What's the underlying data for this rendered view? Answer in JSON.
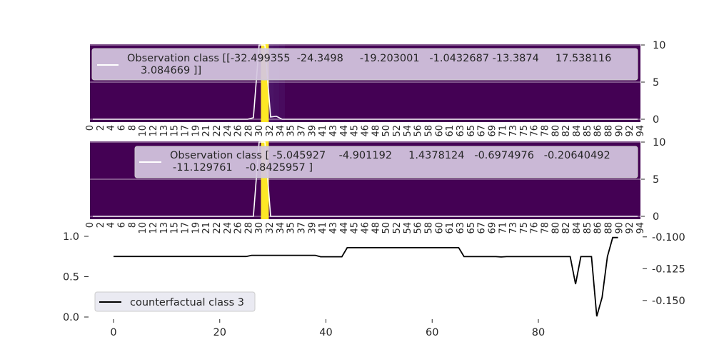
{
  "chart_data": [
    {
      "type": "heatmap",
      "panel": "top",
      "legend": {
        "line1": "Observation class [[-32.499355  -24.3498     -19.203001   -1.0432687 -13.3874     17.538116",
        "line2": "3.084669 ]]"
      },
      "y_right_ticks": [
        "10",
        "5",
        "0"
      ],
      "ylim": [
        0,
        10
      ],
      "colormap": "viridis",
      "highlight_column": 30,
      "faint_columns": [
        31,
        32,
        33
      ],
      "line_series": {
        "x": [
          0,
          27,
          28,
          29,
          30,
          31,
          32,
          33,
          40,
          50,
          60,
          70,
          80,
          90,
          95
        ],
        "y": [
          0,
          0,
          0.2,
          10,
          10,
          0.3,
          0.4,
          0,
          0,
          0,
          0,
          0,
          0,
          0,
          0
        ]
      }
    },
    {
      "type": "heatmap",
      "panel": "middle",
      "legend": {
        "line1": "Observation class [ -5.045927    -4.901192     1.4378124   -0.6974976   -0.20640492",
        "line2": "-11.129761    -0.8425957 ]"
      },
      "y_right_ticks": [
        "10",
        "5",
        "0"
      ],
      "ylim": [
        0,
        10
      ],
      "colormap": "viridis",
      "highlight_column": 30,
      "line_series": {
        "x": [
          0,
          27,
          28,
          29,
          30,
          31,
          40,
          50,
          60,
          70,
          80,
          90,
          95
        ],
        "y": [
          0,
          0,
          0,
          10,
          10,
          0,
          0,
          0,
          0,
          0,
          0,
          0,
          0
        ]
      }
    },
    {
      "type": "line",
      "panel": "bottom",
      "legend_label": "counterfactual class 3",
      "x_ticks": [
        "0",
        "20",
        "40",
        "60",
        "80"
      ],
      "left_y_ticks": [
        "1.0",
        "0.5",
        "0.0"
      ],
      "right_y_ticks": [
        "-0.100",
        "-0.125",
        "-0.150"
      ],
      "xlim": [
        -5,
        96
      ],
      "ylim": [
        -0.163,
        -0.099
      ],
      "series": {
        "x": [
          0,
          25,
          26,
          38,
          39,
          43,
          44,
          45,
          50,
          55,
          60,
          65,
          66,
          67,
          72,
          73,
          74,
          80,
          86,
          87,
          88,
          90,
          91,
          92,
          93,
          94,
          95
        ],
        "y": [
          -0.1154,
          -0.1154,
          -0.1145,
          -0.1145,
          -0.1156,
          -0.1156,
          -0.1085,
          -0.1085,
          -0.1085,
          -0.1085,
          -0.1085,
          -0.1085,
          -0.1155,
          -0.1155,
          -0.1155,
          -0.1158,
          -0.1155,
          -0.1155,
          -0.1155,
          -0.1372,
          -0.1155,
          -0.1155,
          -0.1625,
          -0.1475,
          -0.1155,
          -0.1005,
          -0.1005
        ]
      }
    }
  ],
  "shared_x_tick_labels": [
    "0",
    "2",
    "4",
    "6",
    "8",
    "10",
    "12",
    "13",
    "15",
    "17",
    "19",
    "21",
    "22",
    "24",
    "26",
    "28",
    "30",
    "32",
    "34",
    "35",
    "37",
    "39",
    "41",
    "43",
    "44",
    "45",
    "46",
    "48",
    "50",
    "52",
    "54",
    "56",
    "58",
    "60",
    "61",
    "63",
    "65",
    "67",
    "69",
    "71",
    "73",
    "75",
    "76",
    "78",
    "80",
    "82",
    "84",
    "85",
    "86",
    "88",
    "90",
    "92",
    "94"
  ],
  "colors": {
    "heatmap_low": "#440154",
    "heatmap_high": "#fde725",
    "legend_fill": "#d4c6e0",
    "counterfactual_line": "#000000"
  }
}
